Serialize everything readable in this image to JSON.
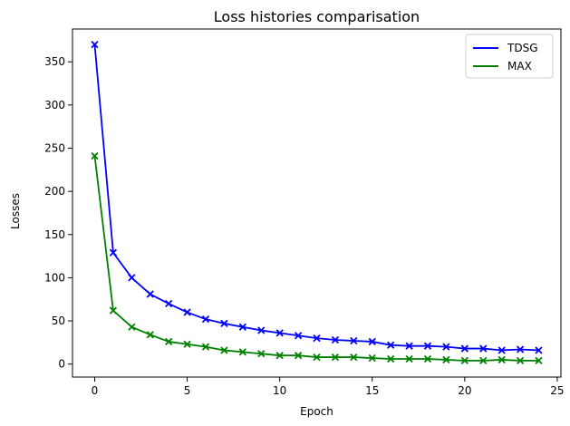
{
  "chart_data": {
    "type": "line",
    "title": "Loss histories comparisation",
    "xlabel": "Epoch",
    "ylabel": "Losses",
    "xlim": [
      -1.2,
      25.2
    ],
    "ylim": [
      -15,
      388
    ],
    "xticks": [
      0,
      5,
      10,
      15,
      20,
      25
    ],
    "yticks": [
      0,
      50,
      100,
      150,
      200,
      250,
      300,
      350
    ],
    "grid": false,
    "legend_position": "top-right",
    "marker": "x",
    "x": [
      0,
      1,
      2,
      3,
      4,
      5,
      6,
      7,
      8,
      9,
      10,
      11,
      12,
      13,
      14,
      15,
      16,
      17,
      18,
      19,
      20,
      21,
      22,
      23,
      24
    ],
    "series": [
      {
        "name": "TDSG",
        "color": "#0000ff",
        "values": [
          370,
          129,
          100,
          81,
          70,
          60,
          52,
          47,
          43,
          39,
          36,
          33,
          30,
          28,
          27,
          26,
          22,
          21,
          21,
          20,
          18,
          18,
          16,
          17,
          16
        ]
      },
      {
        "name": "MAX",
        "color": "#008000",
        "values": [
          241,
          62,
          43,
          34,
          26,
          23,
          20,
          16,
          14,
          12,
          10,
          10,
          8,
          8,
          8,
          7,
          6,
          6,
          6,
          5,
          4,
          4,
          5,
          4,
          4
        ]
      }
    ]
  }
}
